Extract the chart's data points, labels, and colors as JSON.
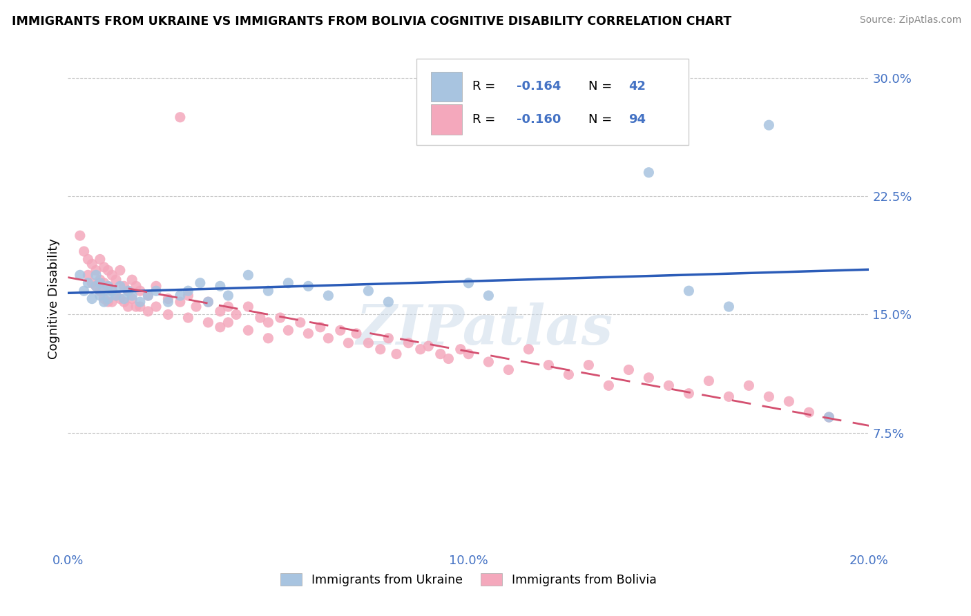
{
  "title": "IMMIGRANTS FROM UKRAINE VS IMMIGRANTS FROM BOLIVIA COGNITIVE DISABILITY CORRELATION CHART",
  "source": "Source: ZipAtlas.com",
  "ylabel": "Cognitive Disability",
  "xlim": [
    0.0,
    0.2
  ],
  "ylim": [
    0.0,
    0.32
  ],
  "yticks": [
    0.075,
    0.15,
    0.225,
    0.3
  ],
  "ytick_labels": [
    "7.5%",
    "15.0%",
    "22.5%",
    "30.0%"
  ],
  "xticks": [
    0.0,
    0.05,
    0.1,
    0.15,
    0.2
  ],
  "xtick_labels": [
    "0.0%",
    "",
    "10.0%",
    "",
    "20.0%"
  ],
  "ukraine_color": "#a8c4e0",
  "bolivia_color": "#f4a8bc",
  "ukraine_line_color": "#2b5cb8",
  "bolivia_line_color": "#d45070",
  "background_color": "#ffffff",
  "grid_color": "#c8c8c8",
  "axis_color": "#4472c4",
  "watermark": "ZIPatlas",
  "ukraine_scatter": [
    [
      0.003,
      0.175
    ],
    [
      0.004,
      0.165
    ],
    [
      0.005,
      0.17
    ],
    [
      0.006,
      0.16
    ],
    [
      0.007,
      0.168
    ],
    [
      0.007,
      0.175
    ],
    [
      0.008,
      0.162
    ],
    [
      0.008,
      0.17
    ],
    [
      0.009,
      0.165
    ],
    [
      0.009,
      0.158
    ],
    [
      0.01,
      0.168
    ],
    [
      0.01,
      0.16
    ],
    [
      0.011,
      0.165
    ],
    [
      0.012,
      0.162
    ],
    [
      0.013,
      0.168
    ],
    [
      0.014,
      0.16
    ],
    [
      0.015,
      0.165
    ],
    [
      0.016,
      0.162
    ],
    [
      0.018,
      0.158
    ],
    [
      0.02,
      0.162
    ],
    [
      0.022,
      0.165
    ],
    [
      0.025,
      0.158
    ],
    [
      0.028,
      0.162
    ],
    [
      0.03,
      0.165
    ],
    [
      0.033,
      0.17
    ],
    [
      0.035,
      0.158
    ],
    [
      0.038,
      0.168
    ],
    [
      0.04,
      0.162
    ],
    [
      0.045,
      0.175
    ],
    [
      0.05,
      0.165
    ],
    [
      0.055,
      0.17
    ],
    [
      0.06,
      0.168
    ],
    [
      0.065,
      0.162
    ],
    [
      0.075,
      0.165
    ],
    [
      0.08,
      0.158
    ],
    [
      0.1,
      0.17
    ],
    [
      0.105,
      0.162
    ],
    [
      0.145,
      0.24
    ],
    [
      0.155,
      0.165
    ],
    [
      0.165,
      0.155
    ],
    [
      0.175,
      0.27
    ],
    [
      0.19,
      0.085
    ]
  ],
  "bolivia_scatter": [
    [
      0.003,
      0.2
    ],
    [
      0.004,
      0.19
    ],
    [
      0.005,
      0.185
    ],
    [
      0.005,
      0.175
    ],
    [
      0.006,
      0.182
    ],
    [
      0.006,
      0.17
    ],
    [
      0.007,
      0.178
    ],
    [
      0.007,
      0.168
    ],
    [
      0.008,
      0.185
    ],
    [
      0.008,
      0.172
    ],
    [
      0.008,
      0.165
    ],
    [
      0.009,
      0.18
    ],
    [
      0.009,
      0.17
    ],
    [
      0.009,
      0.16
    ],
    [
      0.01,
      0.178
    ],
    [
      0.01,
      0.168
    ],
    [
      0.01,
      0.158
    ],
    [
      0.011,
      0.175
    ],
    [
      0.011,
      0.165
    ],
    [
      0.011,
      0.158
    ],
    [
      0.012,
      0.172
    ],
    [
      0.012,
      0.162
    ],
    [
      0.013,
      0.178
    ],
    [
      0.013,
      0.16
    ],
    [
      0.014,
      0.168
    ],
    [
      0.014,
      0.158
    ],
    [
      0.015,
      0.165
    ],
    [
      0.015,
      0.155
    ],
    [
      0.016,
      0.172
    ],
    [
      0.016,
      0.16
    ],
    [
      0.017,
      0.168
    ],
    [
      0.017,
      0.155
    ],
    [
      0.018,
      0.165
    ],
    [
      0.018,
      0.155
    ],
    [
      0.02,
      0.162
    ],
    [
      0.02,
      0.152
    ],
    [
      0.022,
      0.168
    ],
    [
      0.022,
      0.155
    ],
    [
      0.025,
      0.16
    ],
    [
      0.025,
      0.15
    ],
    [
      0.028,
      0.275
    ],
    [
      0.028,
      0.158
    ],
    [
      0.03,
      0.162
    ],
    [
      0.03,
      0.148
    ],
    [
      0.032,
      0.155
    ],
    [
      0.035,
      0.158
    ],
    [
      0.035,
      0.145
    ],
    [
      0.038,
      0.152
    ],
    [
      0.038,
      0.142
    ],
    [
      0.04,
      0.155
    ],
    [
      0.04,
      0.145
    ],
    [
      0.042,
      0.15
    ],
    [
      0.045,
      0.155
    ],
    [
      0.045,
      0.14
    ],
    [
      0.048,
      0.148
    ],
    [
      0.05,
      0.145
    ],
    [
      0.05,
      0.135
    ],
    [
      0.053,
      0.148
    ],
    [
      0.055,
      0.14
    ],
    [
      0.058,
      0.145
    ],
    [
      0.06,
      0.138
    ],
    [
      0.063,
      0.142
    ],
    [
      0.065,
      0.135
    ],
    [
      0.068,
      0.14
    ],
    [
      0.07,
      0.132
    ],
    [
      0.072,
      0.138
    ],
    [
      0.075,
      0.132
    ],
    [
      0.078,
      0.128
    ],
    [
      0.08,
      0.135
    ],
    [
      0.082,
      0.125
    ],
    [
      0.085,
      0.132
    ],
    [
      0.088,
      0.128
    ],
    [
      0.09,
      0.13
    ],
    [
      0.093,
      0.125
    ],
    [
      0.095,
      0.122
    ],
    [
      0.098,
      0.128
    ],
    [
      0.1,
      0.125
    ],
    [
      0.105,
      0.12
    ],
    [
      0.11,
      0.115
    ],
    [
      0.115,
      0.128
    ],
    [
      0.12,
      0.118
    ],
    [
      0.125,
      0.112
    ],
    [
      0.13,
      0.118
    ],
    [
      0.135,
      0.105
    ],
    [
      0.14,
      0.115
    ],
    [
      0.145,
      0.11
    ],
    [
      0.15,
      0.105
    ],
    [
      0.155,
      0.1
    ],
    [
      0.16,
      0.108
    ],
    [
      0.165,
      0.098
    ],
    [
      0.17,
      0.105
    ],
    [
      0.175,
      0.098
    ],
    [
      0.18,
      0.095
    ],
    [
      0.185,
      0.088
    ],
    [
      0.19,
      0.085
    ]
  ]
}
